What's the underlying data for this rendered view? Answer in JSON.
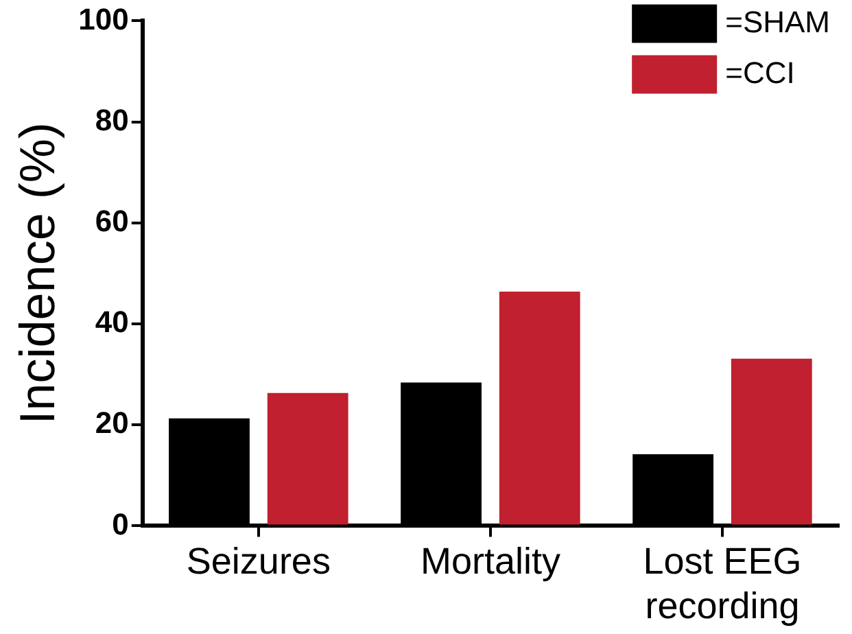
{
  "chart_data": {
    "type": "bar",
    "ylabel": "Incidence (%)",
    "categories": [
      "Seizures",
      "Mortality",
      "Lost EEG recording"
    ],
    "series": [
      {
        "name": "=SHAM",
        "color": "#000000",
        "values": [
          21.3,
          28.4,
          14.2
        ]
      },
      {
        "name": "=CCI",
        "color": "#c0202f",
        "values": [
          26.3,
          46.4,
          33.1
        ]
      }
    ],
    "ylim": [
      0,
      100
    ],
    "yticks": [
      0,
      20,
      40,
      60,
      80,
      100
    ],
    "grid": false,
    "legend": "top right"
  }
}
